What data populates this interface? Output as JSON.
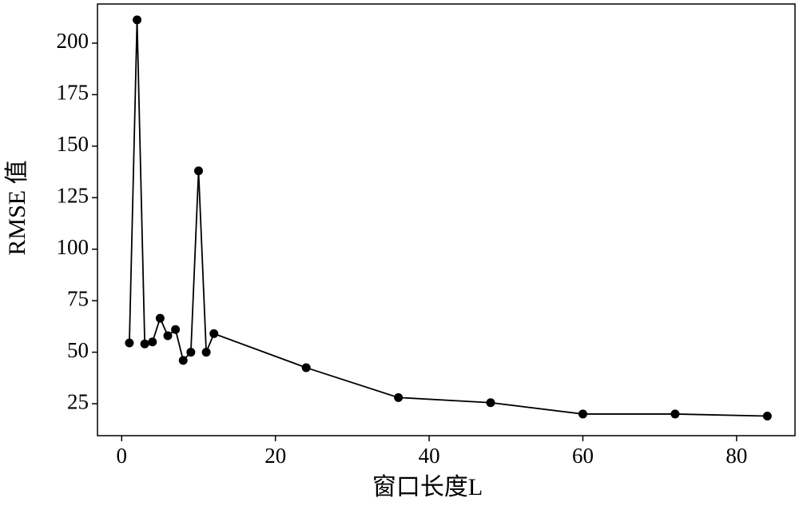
{
  "chart_data": {
    "type": "line",
    "xlabel": "窗口长度L",
    "ylabel": "RMSE 值",
    "x": [
      1,
      2,
      3,
      4,
      5,
      6,
      7,
      8,
      9,
      10,
      11,
      12,
      24,
      36,
      48,
      60,
      72,
      84
    ],
    "series": [
      {
        "color": "#000000",
        "values": [
          54.5,
          211.3,
          54,
          55,
          66.5,
          58,
          61,
          46,
          50,
          138,
          50,
          59,
          42.5,
          28,
          25.5,
          20,
          20,
          19
        ]
      }
    ],
    "xlim": [
      -3.15,
      87.6
    ],
    "xticks": [
      0,
      20,
      40,
      60,
      80
    ],
    "ylim": [
      9.5,
      219
    ],
    "yticks": [
      25,
      50,
      75,
      100,
      125,
      150,
      175,
      200
    ],
    "grid": false,
    "markers": true
  }
}
